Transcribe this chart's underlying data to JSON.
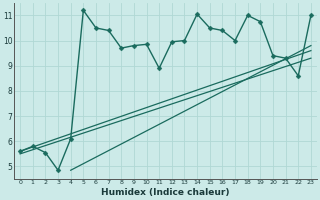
{
  "title": "",
  "xlabel": "Humidex (Indice chaleur)",
  "bg_color": "#cceae8",
  "grid_color": "#b0d8d4",
  "line_color": "#1a6b5e",
  "xlim": [
    -0.5,
    23.5
  ],
  "ylim": [
    4.5,
    11.5
  ],
  "xticks": [
    0,
    1,
    2,
    3,
    4,
    5,
    6,
    7,
    8,
    9,
    10,
    11,
    12,
    13,
    14,
    15,
    16,
    17,
    18,
    19,
    20,
    21,
    22,
    23
  ],
  "yticks": [
    5,
    6,
    7,
    8,
    9,
    10,
    11
  ],
  "data_x": [
    0,
    1,
    2,
    3,
    4,
    5,
    6,
    7,
    8,
    9,
    10,
    11,
    12,
    13,
    14,
    15,
    16,
    17,
    18,
    19,
    20,
    21,
    22,
    23
  ],
  "data_y": [
    5.6,
    5.8,
    5.55,
    4.85,
    6.1,
    11.2,
    10.5,
    10.4,
    9.7,
    9.8,
    9.85,
    8.9,
    9.95,
    10.0,
    11.05,
    10.5,
    10.4,
    10.0,
    11.0,
    10.75,
    9.4,
    9.3,
    8.6,
    11.0
  ],
  "trend1_x": [
    0,
    23
  ],
  "trend1_y": [
    5.6,
    9.6
  ],
  "trend2_x": [
    0,
    23
  ],
  "trend2_y": [
    5.5,
    9.3
  ],
  "trend3_x": [
    4,
    23
  ],
  "trend3_y": [
    4.85,
    9.8
  ],
  "marker_size": 2.5,
  "line_width": 1.0
}
